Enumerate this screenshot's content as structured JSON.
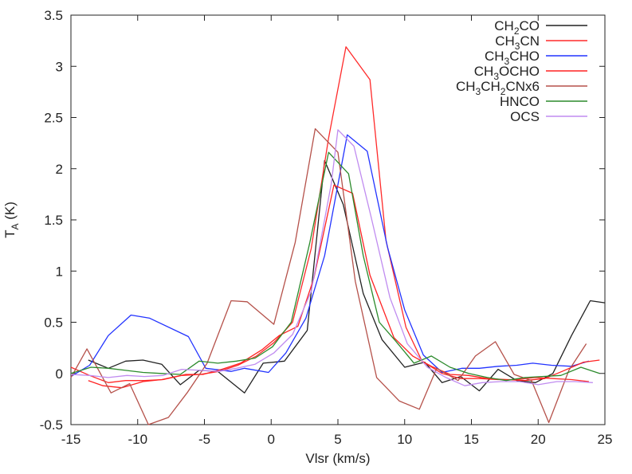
{
  "chart_data": {
    "type": "line",
    "title": "",
    "xlabel": "Vlsr (km/s)",
    "ylabel": {
      "main": "T",
      "sub": "A",
      "suffix": " (K)"
    },
    "xlim": [
      -15,
      25
    ],
    "ylim": [
      -0.5,
      3.5
    ],
    "xticks": [
      -15,
      -10,
      -5,
      0,
      5,
      10,
      15,
      20,
      25
    ],
    "xtick_labels": [
      "-15",
      "-10",
      "-5",
      "0",
      "5",
      "10",
      "15",
      "20",
      "25"
    ],
    "yticks": [
      -0.5,
      0,
      0.5,
      1,
      1.5,
      2,
      2.5,
      3,
      3.5
    ],
    "ytick_labels": [
      "-0.5",
      "0",
      "0.5",
      "1",
      "1.5",
      "2",
      "2.5",
      "3",
      "3.5"
    ],
    "grid": false,
    "legend_position": "top-right",
    "series": [
      {
        "name": "CH2CO",
        "label_parts": [
          {
            "t": "CH"
          },
          {
            "t": "2",
            "sub": true
          },
          {
            "t": "CO"
          }
        ],
        "color": "#222222",
        "x": [
          -13.7,
          -12.2,
          -10.9,
          -9.6,
          -8.2,
          -6.8,
          -5.4,
          -4.0,
          -2.0,
          -0.6,
          1.0,
          2.7,
          4.0,
          5.4,
          6.9,
          8.3,
          10.0,
          11.5,
          12.8,
          14.2,
          15.6,
          17.0,
          18.4,
          19.8,
          21.1,
          22.5,
          23.9,
          25.0
        ],
        "values": [
          0.13,
          0.05,
          0.12,
          0.13,
          0.09,
          -0.11,
          0.03,
          0.02,
          -0.19,
          0.1,
          0.12,
          0.42,
          2.08,
          1.65,
          0.78,
          0.33,
          0.06,
          0.11,
          -0.09,
          -0.03,
          -0.17,
          0.04,
          -0.07,
          -0.09,
          0.0,
          0.37,
          0.71,
          0.69
        ]
      },
      {
        "name": "CH3CN",
        "label_parts": [
          {
            "t": "CH"
          },
          {
            "t": "3",
            "sub": true
          },
          {
            "t": "CN"
          }
        ],
        "color": "#ff2a2a",
        "x": [
          -15.0,
          -13.6,
          -12.2,
          -10.9,
          -9.5,
          -8.1,
          -6.7,
          -5.3,
          -3.9,
          -2.5,
          -1.1,
          0.2,
          1.6,
          3.0,
          4.3,
          5.6,
          7.4,
          8.6,
          10.1,
          11.3,
          12.8,
          14.2,
          15.6,
          17.0,
          18.4,
          19.8,
          21.1,
          22.5,
          23.8
        ],
        "values": [
          0.06,
          -0.02,
          -0.09,
          -0.07,
          -0.07,
          -0.06,
          -0.02,
          -0.01,
          0.02,
          0.08,
          0.17,
          0.3,
          0.5,
          1.22,
          2.3,
          3.19,
          2.87,
          1.3,
          0.45,
          0.12,
          0.0,
          -0.05,
          -0.05,
          -0.06,
          -0.06,
          -0.04,
          -0.05,
          -0.06,
          -0.08
        ]
      },
      {
        "name": "CH3CHO",
        "label_parts": [
          {
            "t": "CH"
          },
          {
            "t": "3",
            "sub": true
          },
          {
            "t": "CHO"
          }
        ],
        "color": "#2233ff",
        "x": [
          -15.0,
          -13.6,
          -12.2,
          -10.5,
          -9.1,
          -6.2,
          -4.9,
          -3.0,
          -2.0,
          -0.2,
          1.1,
          2.6,
          4.0,
          5.7,
          7.2,
          8.7,
          10.0,
          11.4,
          12.8,
          14.3,
          15.6,
          17.0,
          18.4,
          19.6,
          21.0,
          22.5,
          23.8
        ],
        "values": [
          -0.03,
          0.08,
          0.37,
          0.57,
          0.54,
          0.36,
          0.05,
          0.02,
          0.05,
          0.01,
          0.2,
          0.54,
          1.15,
          2.33,
          2.17,
          1.24,
          0.62,
          0.18,
          0.01,
          0.05,
          0.05,
          0.07,
          0.08,
          0.1,
          0.08,
          0.07,
          0.12
        ]
      },
      {
        "name": "CH3OCHO",
        "label_parts": [
          {
            "t": "CH"
          },
          {
            "t": "3",
            "sub": true
          },
          {
            "t": "OCHO"
          }
        ],
        "color": "#ff2222",
        "x": [
          -13.7,
          -12.6,
          -11.2,
          -9.6,
          -8.2,
          -6.4,
          -5.1,
          -3.7,
          -2.3,
          -0.7,
          0.6,
          2.0,
          3.2,
          4.7,
          6.1,
          7.4,
          9.2,
          10.6,
          12.0,
          13.4,
          14.8,
          16.2,
          17.6,
          19.0,
          20.5,
          21.8,
          23.4,
          24.6
        ],
        "values": [
          -0.07,
          -0.12,
          -0.14,
          -0.08,
          -0.06,
          -0.01,
          -0.01,
          0.04,
          0.1,
          0.23,
          0.37,
          0.46,
          0.93,
          1.84,
          1.76,
          0.96,
          0.35,
          0.17,
          0.07,
          -0.01,
          -0.02,
          -0.05,
          -0.06,
          -0.07,
          -0.05,
          0.02,
          0.11,
          0.13
        ]
      },
      {
        "name": "CH3CH2CNx6",
        "label_parts": [
          {
            "t": "CH"
          },
          {
            "t": "3",
            "sub": true
          },
          {
            "t": "CH"
          },
          {
            "t": "2",
            "sub": true
          },
          {
            "t": "CNx6"
          }
        ],
        "color": "#b5514a",
        "x": [
          -15.0,
          -13.8,
          -12.0,
          -10.6,
          -9.2,
          -7.7,
          -6.3,
          -4.8,
          -3.0,
          -1.8,
          0.2,
          1.8,
          3.3,
          5.0,
          6.3,
          7.9,
          9.6,
          11.1,
          12.4,
          14.0,
          15.3,
          16.8,
          18.2,
          19.5,
          20.8,
          22.3,
          23.6
        ],
        "values": [
          -0.04,
          0.24,
          -0.19,
          -0.1,
          -0.55,
          -0.43,
          -0.19,
          0.1,
          0.71,
          0.7,
          0.48,
          1.28,
          2.39,
          2.16,
          0.9,
          -0.04,
          -0.27,
          -0.35,
          0.05,
          -0.07,
          0.17,
          0.31,
          -0.01,
          -0.07,
          -0.48,
          0.03,
          0.29
        ]
      },
      {
        "name": "HNCO",
        "label_parts": [
          {
            "t": "HNCO"
          }
        ],
        "color": "#2b8a2b",
        "x": [
          -15.0,
          -13.5,
          -12.2,
          -10.9,
          -9.6,
          -8.2,
          -6.8,
          -5.4,
          -4.0,
          -2.6,
          -1.2,
          0.1,
          1.5,
          2.9,
          4.3,
          5.8,
          6.9,
          8.1,
          9.3,
          10.7,
          12.0,
          13.4,
          14.8,
          16.2,
          17.6,
          19.0,
          20.3,
          21.7,
          23.2,
          24.6
        ],
        "values": [
          0.0,
          0.06,
          0.05,
          0.03,
          0.01,
          0.0,
          -0.01,
          0.12,
          0.1,
          0.12,
          0.15,
          0.26,
          0.5,
          1.28,
          2.16,
          1.95,
          1.15,
          0.5,
          0.32,
          0.1,
          0.17,
          0.06,
          0.0,
          -0.04,
          -0.07,
          -0.04,
          -0.03,
          -0.02,
          0.06,
          0.0
        ]
      },
      {
        "name": "OCS",
        "label_parts": [
          {
            "t": "OCS"
          }
        ],
        "color": "#c08cf0",
        "x": [
          -15.0,
          -13.6,
          -12.2,
          -10.8,
          -9.5,
          -8.1,
          -6.7,
          -5.3,
          -3.9,
          -2.6,
          -1.2,
          0.2,
          1.6,
          3.0,
          4.5,
          5.0,
          6.2,
          7.5,
          8.9,
          10.2,
          11.7,
          13.1,
          14.5,
          15.8,
          17.2,
          18.6,
          20.0,
          21.4,
          22.8,
          24.1
        ],
        "values": [
          -0.01,
          -0.02,
          -0.04,
          -0.02,
          -0.03,
          -0.02,
          0.04,
          0.03,
          0.02,
          0.05,
          0.09,
          0.2,
          0.38,
          0.8,
          1.85,
          2.38,
          2.22,
          1.52,
          0.74,
          0.29,
          0.06,
          -0.04,
          -0.12,
          -0.09,
          -0.08,
          -0.08,
          -0.11,
          -0.08,
          -0.08,
          -0.09
        ]
      }
    ]
  }
}
